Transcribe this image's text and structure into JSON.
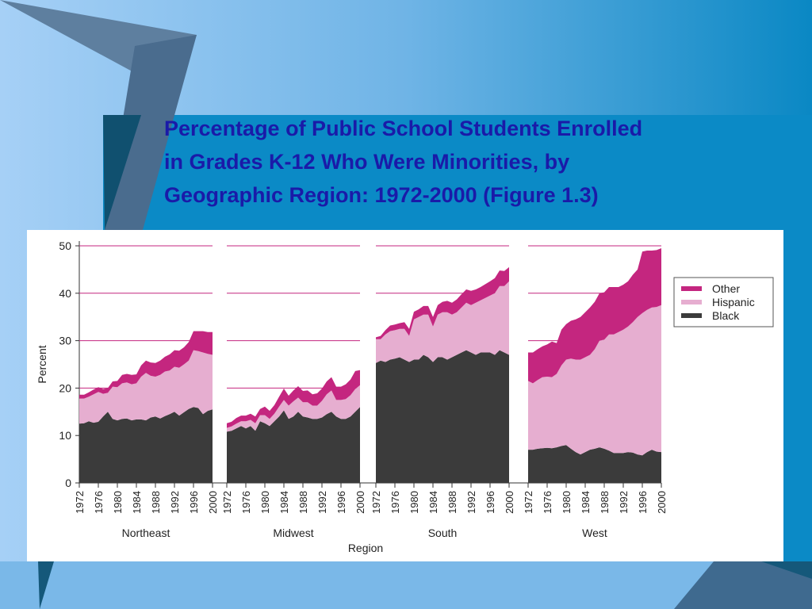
{
  "slide": {
    "title_lines": [
      "Percentage of Public School Students Enrolled",
      "in Grades K-12 Who Were Minorities, by",
      "Geographic Region: 1972-2000 (Figure 1.3)"
    ]
  },
  "colors": {
    "title": "#1a1aa8",
    "background_light": "#a6d0f6",
    "background_dark": "#0a88c4",
    "other": "#c4267f",
    "hispanic": "#e6aed0",
    "black": "#3b3b3b"
  },
  "chart_data": {
    "type": "area",
    "stacked": true,
    "title": "",
    "xlabel": "Region",
    "ylabel": "Percent",
    "ylim": [
      0,
      50
    ],
    "yticks": [
      0,
      10,
      20,
      30,
      40,
      50
    ],
    "grid": true,
    "legend_position": "right",
    "x": [
      1972,
      1973,
      1974,
      1975,
      1976,
      1977,
      1978,
      1979,
      1980,
      1981,
      1982,
      1983,
      1984,
      1985,
      1986,
      1987,
      1988,
      1989,
      1990,
      1991,
      1992,
      1993,
      1994,
      1995,
      1996,
      1997,
      1998,
      1999,
      2000
    ],
    "x_tick_labels": [
      "1972",
      "1976",
      "1980",
      "1984",
      "1988",
      "1992",
      "1996",
      "2000"
    ],
    "series_names": [
      "Black",
      "Hispanic",
      "Other"
    ],
    "legend": [
      "Other",
      "Hispanic",
      "Black"
    ],
    "regions": [
      {
        "name": "Northeast",
        "black": [
          12.5,
          12.6,
          13.0,
          12.7,
          12.9,
          14.0,
          15.0,
          13.5,
          13.2,
          13.5,
          13.6,
          13.2,
          13.4,
          13.4,
          13.2,
          13.8,
          14.0,
          13.6,
          14.1,
          14.5,
          15.0,
          14.2,
          14.9,
          15.6,
          16.0,
          15.8,
          14.5,
          15.2,
          15.5
        ],
        "hispanic": [
          5.3,
          5.2,
          5.2,
          6.0,
          6.3,
          4.8,
          4.0,
          6.8,
          7.0,
          7.5,
          7.6,
          7.6,
          7.6,
          9.0,
          10.0,
          8.8,
          8.4,
          9.2,
          9.4,
          9.2,
          9.5,
          10.1,
          10.1,
          10.2,
          12.0,
          12.0,
          13.0,
          12.0,
          11.5
        ],
        "other": [
          0.8,
          0.8,
          0.9,
          1.0,
          1.0,
          1.0,
          1.0,
          1.1,
          1.3,
          1.8,
          1.8,
          2.0,
          1.9,
          2.4,
          2.6,
          2.8,
          2.9,
          3.0,
          3.1,
          3.4,
          3.5,
          3.6,
          3.6,
          3.9,
          4.0,
          4.2,
          4.5,
          4.6,
          4.8
        ]
      },
      {
        "name": "Midwest",
        "black": [
          10.8,
          11.0,
          11.5,
          12.0,
          11.5,
          12.0,
          11.0,
          13.0,
          12.6,
          12.0,
          13.0,
          14.0,
          15.3,
          13.5,
          14.0,
          15.0,
          14.0,
          13.8,
          13.5,
          13.5,
          13.8,
          14.5,
          15.0,
          14.0,
          13.5,
          13.5,
          14.0,
          15.0,
          16.0
        ],
        "hispanic": [
          0.8,
          0.9,
          1.0,
          1.0,
          1.5,
          1.3,
          1.6,
          1.3,
          1.7,
          1.5,
          1.6,
          2.1,
          2.2,
          2.8,
          3.2,
          3.0,
          3.0,
          3.2,
          2.8,
          2.8,
          3.5,
          4.2,
          4.5,
          3.5,
          4.0,
          4.2,
          4.5,
          4.8,
          4.6
        ],
        "other": [
          1.0,
          1.0,
          1.2,
          1.2,
          1.2,
          1.3,
          1.4,
          1.3,
          1.8,
          1.7,
          1.8,
          2.1,
          2.4,
          2.1,
          2.3,
          2.4,
          2.4,
          2.5,
          2.4,
          2.6,
          2.6,
          2.7,
          2.8,
          2.8,
          2.8,
          3.1,
          3.3,
          3.8,
          3.2
        ]
      },
      {
        "name": "South",
        "black": [
          25.3,
          25.8,
          25.5,
          26.0,
          26.2,
          26.5,
          26.0,
          25.5,
          26.0,
          26.0,
          27.0,
          26.5,
          25.5,
          26.5,
          26.5,
          26.0,
          26.5,
          27.0,
          27.5,
          28.0,
          27.5,
          27.0,
          27.5,
          27.5,
          27.5,
          27.0,
          28.0,
          27.5,
          27.0
        ],
        "hispanic": [
          5.0,
          4.5,
          5.8,
          6.0,
          6.0,
          6.0,
          6.5,
          5.5,
          8.5,
          9.0,
          8.5,
          9.0,
          7.5,
          9.0,
          9.5,
          10.0,
          9.0,
          9.0,
          9.5,
          10.0,
          10.0,
          11.0,
          11.0,
          11.5,
          12.0,
          13.0,
          13.5,
          14.0,
          15.5
        ],
        "other": [
          0.4,
          0.7,
          0.9,
          1.2,
          1.2,
          1.2,
          1.4,
          1.5,
          1.6,
          1.6,
          1.8,
          1.8,
          2.0,
          2.0,
          2.2,
          2.4,
          2.5,
          2.7,
          2.8,
          2.8,
          3.0,
          2.8,
          2.8,
          2.9,
          3.0,
          3.2,
          3.3,
          3.2,
          3.0
        ]
      },
      {
        "name": "West",
        "black": [
          7.0,
          7.0,
          7.2,
          7.3,
          7.4,
          7.3,
          7.5,
          7.8,
          8.0,
          7.2,
          6.5,
          6.0,
          6.5,
          7.0,
          7.2,
          7.5,
          7.2,
          6.8,
          6.3,
          6.3,
          6.3,
          6.5,
          6.4,
          6.0,
          5.8,
          6.5,
          7.0,
          6.6,
          6.5
        ],
        "hispanic": [
          14.5,
          14.0,
          14.5,
          15.0,
          15.0,
          15.0,
          15.5,
          17.0,
          18.0,
          19.0,
          19.5,
          20.0,
          20.0,
          20.0,
          21.0,
          22.5,
          23.0,
          24.5,
          25.0,
          25.5,
          26.0,
          26.5,
          27.5,
          29.0,
          30.0,
          30.0,
          30.0,
          30.5,
          31.0
        ],
        "other": [
          6.0,
          6.5,
          6.5,
          6.5,
          6.8,
          7.5,
          6.5,
          7.5,
          7.5,
          8.0,
          8.5,
          9.0,
          9.5,
          10.0,
          10.0,
          10.0,
          10.0,
          10.0,
          10.0,
          9.5,
          9.5,
          9.5,
          10.0,
          10.0,
          13.0,
          12.5,
          12.0,
          12.0,
          12.0
        ]
      }
    ]
  }
}
